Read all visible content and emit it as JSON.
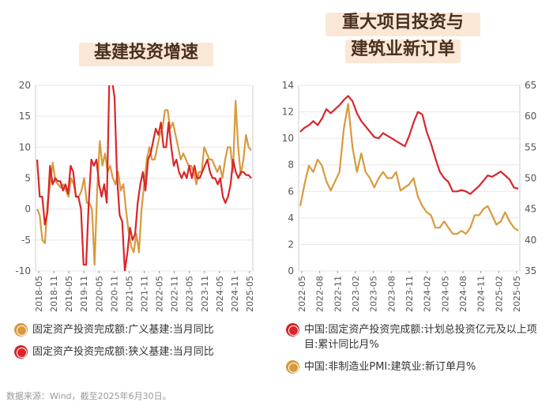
{
  "titles": {
    "left": "基建投资增速",
    "right_line1": "重大项目投资与",
    "right_line2": "建筑业新订单"
  },
  "source": "数据来源：Wind，截至2025年6月30日。",
  "colors": {
    "red": "#d9262a",
    "gold": "#d89a3c",
    "grid": "#e6e6e6",
    "axis": "#999999"
  },
  "chart_data": [
    {
      "type": "line",
      "title": "基建投资增速",
      "ylim": [
        -10,
        20
      ],
      "yticks": [
        -10,
        -5,
        0,
        5,
        10,
        15,
        20
      ],
      "x_labels": [
        "2018-05",
        "2018-11",
        "2019-05",
        "2019-11",
        "2020-05",
        "2020-11",
        "2021-05",
        "2021-11",
        "2022-05",
        "2022-11",
        "2023-05",
        "2023-11",
        "2024-05",
        "2024-11",
        "2025-05"
      ],
      "series": [
        {
          "name": "固定资产投资完成额:广义基建:当月同比",
          "color": "#d89a3c",
          "values": [
            0,
            -1,
            -5,
            -5.5,
            1,
            4,
            7.5,
            4.5,
            4,
            3.5,
            4,
            3,
            2,
            5,
            4,
            2,
            2,
            3,
            5,
            1,
            1,
            0,
            -9,
            3,
            11,
            7,
            9,
            6,
            7,
            5,
            4,
            6,
            3,
            4,
            0,
            -3.5,
            -6,
            -7,
            -4,
            -7,
            0,
            4,
            8,
            10,
            8,
            8,
            10,
            12,
            13,
            16,
            16,
            13,
            14,
            12,
            10,
            8,
            9,
            8,
            7,
            7,
            6,
            4,
            6,
            6,
            10,
            9,
            8,
            8,
            7,
            6,
            7,
            5,
            8,
            10,
            10,
            6,
            17.5,
            10,
            5.5,
            8,
            12,
            10,
            9.5
          ]
        },
        {
          "name": "固定资产投资完成额:狭义基建:当月同比",
          "color": "#d9262a",
          "values": [
            8,
            2,
            2,
            -2.5,
            -0.5,
            7,
            4,
            5,
            4.5,
            4.5,
            3,
            4,
            2.5,
            7,
            6,
            2,
            2,
            0,
            -9,
            -9,
            1,
            8,
            7,
            8,
            4,
            2,
            4,
            1,
            21,
            21,
            18,
            5,
            -1,
            -2,
            -10,
            -7,
            -3,
            -5,
            -4,
            1,
            4,
            6,
            3,
            8,
            9,
            11,
            13,
            12,
            14,
            10,
            10,
            14,
            10,
            7,
            8,
            6,
            5,
            6,
            5,
            7,
            5,
            7,
            5,
            5,
            6,
            7,
            8,
            6,
            5,
            5,
            4,
            5,
            2,
            1,
            2,
            4,
            8,
            6,
            5,
            6,
            6,
            5.5,
            5.5,
            5
          ]
        }
      ]
    },
    {
      "type": "line",
      "title": "重大项目投资与建筑业新订单",
      "ylim_left": [
        0,
        14
      ],
      "yticks_left": [
        0,
        2,
        4,
        6,
        8,
        10,
        12,
        14
      ],
      "ylim_right": [
        35,
        65
      ],
      "yticks_right": [
        35,
        40,
        45,
        50,
        55,
        60,
        65
      ],
      "x_labels": [
        "2022-05",
        "2022-08",
        "2022-11",
        "2023-02",
        "2023-05",
        "2023-08",
        "2023-11",
        "2024-02",
        "2024-05",
        "2024-08",
        "2024-11",
        "2025-02",
        "2025-05"
      ],
      "series": [
        {
          "name": "中国:固定资产投资完成额:计划总投资亿元及以上项目:累计同比月%",
          "color": "#d9262a",
          "axis": "left",
          "values": [
            10.5,
            10.8,
            11,
            11.3,
            11,
            11.5,
            12.2,
            11.9,
            12.2,
            12.5,
            12.9,
            13.2,
            12.8,
            11.9,
            11.3,
            10.9,
            10.5,
            10.1,
            10,
            10.4,
            10.2,
            10,
            9.8,
            9.6,
            9.4,
            10.2,
            11.2,
            12,
            11.8,
            10.5,
            9.6,
            8.5,
            7.5,
            7,
            6.7,
            6,
            6,
            6.1,
            6,
            5.8,
            6.1,
            6.4,
            6.8,
            7.2,
            7.1,
            7.3,
            7.5,
            7.2,
            6.9,
            6.3,
            6.2
          ]
        },
        {
          "name": "中国:非制造业PMI:建筑业:新订单月%",
          "color": "#d89a3c",
          "axis": "right",
          "values": [
            45.5,
            49,
            52,
            51,
            53,
            52,
            49.5,
            48,
            49.5,
            51,
            58,
            62,
            55,
            51,
            54,
            51,
            50,
            48.5,
            50,
            51,
            50,
            50,
            51,
            48,
            48.5,
            49,
            50,
            47,
            45.5,
            44.5,
            44,
            42,
            42,
            43,
            42,
            41,
            41,
            41.5,
            41,
            42,
            44,
            44,
            45,
            45.5,
            44,
            42.5,
            43,
            44.5,
            43,
            42,
            41.5
          ]
        }
      ]
    }
  ],
  "legend": {
    "left": [
      {
        "label": "固定资产投资完成额:广义基建:当月同比",
        "color": "#d89a3c"
      },
      {
        "label": "固定资产投资完成额:狭义基建:当月同比",
        "color": "#d9262a"
      }
    ],
    "right": [
      {
        "label": "中国:固定资产投资完成额:计划总投资亿元及以上项目:累计同比月%",
        "color": "#d9262a"
      },
      {
        "label": "中国:非制造业PMI:建筑业:新订单月%",
        "color": "#d89a3c"
      }
    ]
  }
}
